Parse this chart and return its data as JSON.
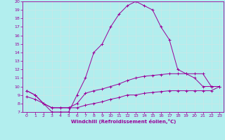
{
  "xlabel": "Windchill (Refroidissement éolien,°C)",
  "xlim": [
    -0.5,
    23.5
  ],
  "ylim": [
    7,
    20
  ],
  "xticks": [
    0,
    1,
    2,
    3,
    4,
    5,
    6,
    7,
    8,
    9,
    10,
    11,
    12,
    13,
    14,
    15,
    16,
    17,
    18,
    19,
    20,
    21,
    22,
    23
  ],
  "yticks": [
    7,
    8,
    9,
    10,
    11,
    12,
    13,
    14,
    15,
    16,
    17,
    18,
    19,
    20
  ],
  "bg_color": "#b2eeee",
  "grid_color": "#c8e8e8",
  "line_color": "#990099",
  "line1_x": [
    0,
    1,
    2,
    3,
    4,
    5,
    6,
    7,
    8,
    9,
    10,
    11,
    12,
    13,
    14,
    15,
    16,
    17,
    18,
    19,
    20,
    21,
    22,
    23
  ],
  "line1_y": [
    9.5,
    9.0,
    8.0,
    7.0,
    7.0,
    7.0,
    9.0,
    11.0,
    14.0,
    15.0,
    17.0,
    18.5,
    19.5,
    20.0,
    19.5,
    19.0,
    17.0,
    15.5,
    12.0,
    11.5,
    11.0,
    10.0,
    10.0,
    10.0
  ],
  "line2_x": [
    0,
    1,
    2,
    3,
    4,
    5,
    6,
    7,
    8,
    9,
    10,
    11,
    12,
    13,
    14,
    15,
    16,
    17,
    18,
    19,
    20,
    21,
    22,
    23
  ],
  "line2_y": [
    9.5,
    9.0,
    8.0,
    7.5,
    7.5,
    7.5,
    8.0,
    9.2,
    9.5,
    9.7,
    10.0,
    10.3,
    10.7,
    11.0,
    11.2,
    11.3,
    11.4,
    11.5,
    11.5,
    11.5,
    11.5,
    11.5,
    10.0,
    10.0
  ],
  "line3_x": [
    0,
    1,
    2,
    3,
    4,
    5,
    6,
    7,
    8,
    9,
    10,
    11,
    12,
    13,
    14,
    15,
    16,
    17,
    18,
    19,
    20,
    21,
    22,
    23
  ],
  "line3_y": [
    8.8,
    8.5,
    8.0,
    7.5,
    7.5,
    7.5,
    7.5,
    7.8,
    8.0,
    8.2,
    8.5,
    8.7,
    9.0,
    9.0,
    9.2,
    9.3,
    9.4,
    9.5,
    9.5,
    9.5,
    9.5,
    9.5,
    9.5,
    10.0
  ]
}
